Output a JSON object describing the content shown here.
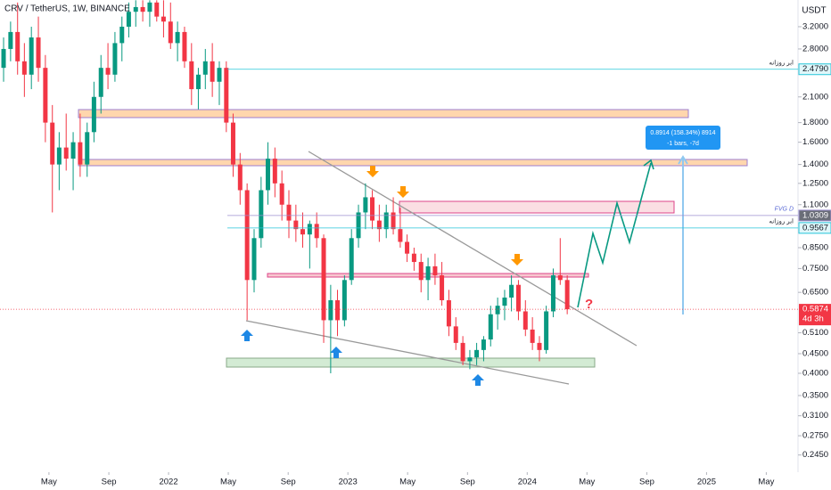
{
  "chart_data": {
    "type": "candlestick",
    "title": "CRV / TetherUS, 1W, BINANCE",
    "axis_label": "USDT",
    "log_scale": true,
    "grid": false,
    "up_color": "#089981",
    "down_color": "#f23645",
    "xlim": [
      2021.06,
      2025.51
    ],
    "ylim": [
      0.221,
      3.756
    ],
    "xticks": [
      {
        "value": 2021.333,
        "label": "May"
      },
      {
        "value": 2021.667,
        "label": "Sep"
      },
      2022,
      {
        "value": 2022.333,
        "label": "May"
      },
      {
        "value": 2022.667,
        "label": "Sep"
      },
      2023,
      {
        "value": 2023.333,
        "label": "May"
      },
      {
        "value": 2023.667,
        "label": "Sep"
      },
      2024,
      {
        "value": 2024.333,
        "label": "May"
      },
      {
        "value": 2024.667,
        "label": "Sep"
      },
      2025,
      {
        "value": 2025.333,
        "label": "May"
      }
    ],
    "yticks": [
      {
        "value": 3.2,
        "label": "3.2000"
      },
      {
        "value": 2.8,
        "label": "2.8000"
      },
      {
        "value": 2.1,
        "label": "2.1000"
      },
      {
        "value": 1.8,
        "label": "1.8000"
      },
      {
        "value": 1.6,
        "label": "1.6000"
      },
      {
        "value": 1.4,
        "label": "1.4000"
      },
      {
        "value": 1.25,
        "label": "1.2500"
      },
      {
        "value": 1.1,
        "label": "1.1000"
      },
      {
        "value": 0.85,
        "label": "0.8500"
      },
      {
        "value": 0.75,
        "label": "0.7500"
      },
      {
        "value": 0.65,
        "label": "0.6500"
      },
      {
        "value": 0.51,
        "label": "0.5100"
      },
      {
        "value": 0.45,
        "label": "0.4500"
      },
      {
        "value": 0.4,
        "label": "0.4000"
      },
      {
        "value": 0.35,
        "label": "0.3500"
      },
      {
        "value": 0.31,
        "label": "0.3100"
      },
      {
        "value": 0.275,
        "label": "0.2750"
      },
      {
        "value": 0.245,
        "label": "0.2450"
      }
    ],
    "x": [
      2021.08,
      2021.119,
      2021.158,
      2021.196,
      2021.235,
      2021.274,
      2021.313,
      2021.352,
      2021.39,
      2021.429,
      2021.468,
      2021.507,
      2021.546,
      2021.584,
      2021.623,
      2021.662,
      2021.701,
      2021.74,
      2021.778,
      2021.817,
      2021.856,
      2021.895,
      2021.934,
      2021.972,
      2022.011,
      2022.05,
      2022.089,
      2022.128,
      2022.166,
      2022.205,
      2022.244,
      2022.283,
      2022.322,
      2022.36,
      2022.399,
      2022.438,
      2022.477,
      2022.516,
      2022.554,
      2022.593,
      2022.632,
      2022.671,
      2022.71,
      2022.748,
      2022.787,
      2022.826,
      2022.865,
      2022.904,
      2022.942,
      2022.981,
      2023.02,
      2023.059,
      2023.098,
      2023.136,
      2023.175,
      2023.214,
      2023.253,
      2023.292,
      2023.33,
      2023.369,
      2023.408,
      2023.447,
      2023.486,
      2023.524,
      2023.563,
      2023.602,
      2023.641,
      2023.68,
      2023.718,
      2023.757,
      2023.796,
      2023.835,
      2023.874,
      2023.912,
      2023.951,
      2023.99,
      2024.029,
      2024.068,
      2024.106,
      2024.145,
      2024.184,
      2024.223
    ],
    "open": [
      2.5,
      2.8,
      3.1,
      2.6,
      2.4,
      3.0,
      2.5,
      1.8,
      1.4,
      1.55,
      1.45,
      1.6,
      1.4,
      1.7,
      2.1,
      2.5,
      2.4,
      2.9,
      3.2,
      3.5,
      3.6,
      3.5,
      3.7,
      3.4,
      3.3,
      2.9,
      3.1,
      2.6,
      2.2,
      2.4,
      2.6,
      2.3,
      2.5,
      1.8,
      1.4,
      1.2,
      0.7,
      0.9,
      1.2,
      1.45,
      1.25,
      1.1,
      1.0,
      0.95,
      0.92,
      0.98,
      0.9,
      0.55,
      0.62,
      0.55,
      0.7,
      0.9,
      1.05,
      1.15,
      1.0,
      0.95,
      1.05,
      0.95,
      0.88,
      0.82,
      0.78,
      0.7,
      0.76,
      0.72,
      0.62,
      0.53,
      0.48,
      0.43,
      0.44,
      0.46,
      0.49,
      0.57,
      0.6,
      0.63,
      0.68,
      0.58,
      0.52,
      0.48,
      0.46,
      0.58,
      0.72,
      0.7
    ],
    "high": [
      3.0,
      3.3,
      3.7,
      2.9,
      3.2,
      3.4,
      2.7,
      2.0,
      1.7,
      1.9,
      1.7,
      1.9,
      1.8,
      2.3,
      2.7,
      2.9,
      3.1,
      3.4,
      3.7,
      3.75,
      3.75,
      3.75,
      3.75,
      3.75,
      3.7,
      3.3,
      3.2,
      2.9,
      2.5,
      2.8,
      2.9,
      2.6,
      2.6,
      1.9,
      1.5,
      1.25,
      0.95,
      1.3,
      1.6,
      1.55,
      1.35,
      1.2,
      1.1,
      1.05,
      1.0,
      1.05,
      0.92,
      0.68,
      0.66,
      0.72,
      0.95,
      1.1,
      1.25,
      1.2,
      1.1,
      1.1,
      1.15,
      1.08,
      0.92,
      0.85,
      0.82,
      0.8,
      0.82,
      0.78,
      0.66,
      0.56,
      0.5,
      0.46,
      0.48,
      0.5,
      0.6,
      0.63,
      0.66,
      0.72,
      0.7,
      0.62,
      0.56,
      0.5,
      0.6,
      0.75,
      0.9,
      0.72
    ],
    "low": [
      2.3,
      2.6,
      2.4,
      2.1,
      2.2,
      2.3,
      1.6,
      1.05,
      1.2,
      1.35,
      1.2,
      1.3,
      1.3,
      1.6,
      1.9,
      2.2,
      2.3,
      2.6,
      3.0,
      3.2,
      3.3,
      3.2,
      3.3,
      3.0,
      2.8,
      2.6,
      2.5,
      2.0,
      1.95,
      2.2,
      2.1,
      2.0,
      1.7,
      1.3,
      1.1,
      0.55,
      0.65,
      0.85,
      1.1,
      1.15,
      1.0,
      0.9,
      0.88,
      0.85,
      0.75,
      0.85,
      0.48,
      0.4,
      0.5,
      0.53,
      0.68,
      0.85,
      0.95,
      0.95,
      0.88,
      0.9,
      0.92,
      0.85,
      0.78,
      0.74,
      0.65,
      0.62,
      0.68,
      0.6,
      0.5,
      0.46,
      0.42,
      0.41,
      0.42,
      0.43,
      0.47,
      0.52,
      0.55,
      0.58,
      0.55,
      0.5,
      0.46,
      0.43,
      0.45,
      0.56,
      0.68,
      0.57
    ],
    "close": [
      2.8,
      3.1,
      2.6,
      2.4,
      3.0,
      2.5,
      1.8,
      1.4,
      1.55,
      1.45,
      1.6,
      1.4,
      1.7,
      2.1,
      2.5,
      2.4,
      2.9,
      3.2,
      3.5,
      3.6,
      3.5,
      3.7,
      3.4,
      3.3,
      2.9,
      3.1,
      2.6,
      2.2,
      2.4,
      2.6,
      2.3,
      2.5,
      1.8,
      1.4,
      1.2,
      0.7,
      0.9,
      1.2,
      1.45,
      1.25,
      1.1,
      1.0,
      0.95,
      0.92,
      0.98,
      0.9,
      0.55,
      0.62,
      0.55,
      0.7,
      0.9,
      1.05,
      1.15,
      1.0,
      0.95,
      1.05,
      0.95,
      0.88,
      0.82,
      0.78,
      0.7,
      0.76,
      0.72,
      0.62,
      0.53,
      0.48,
      0.43,
      0.44,
      0.46,
      0.49,
      0.57,
      0.6,
      0.63,
      0.68,
      0.58,
      0.52,
      0.48,
      0.46,
      0.58,
      0.72,
      0.7,
      0.5874
    ],
    "last_price": 0.5874,
    "last_price_label": "0.5874",
    "countdown": "4d 3h",
    "levels": [
      {
        "value": 2.479,
        "label": "2.4790",
        "name": "ابر روزانه",
        "color": "#26c6da"
      },
      {
        "value": 1.0309,
        "label": "1.0309",
        "name": "FVG D",
        "color": "#9c8fd0"
      },
      {
        "value": 0.9567,
        "label": "0.9567",
        "name": "ابر روزانه",
        "color": "#26c6da"
      }
    ],
    "measure": {
      "line1": "0.8914 (158.34%) 8914",
      "line2": "-1 bars, -7d"
    },
    "question": "?"
  }
}
